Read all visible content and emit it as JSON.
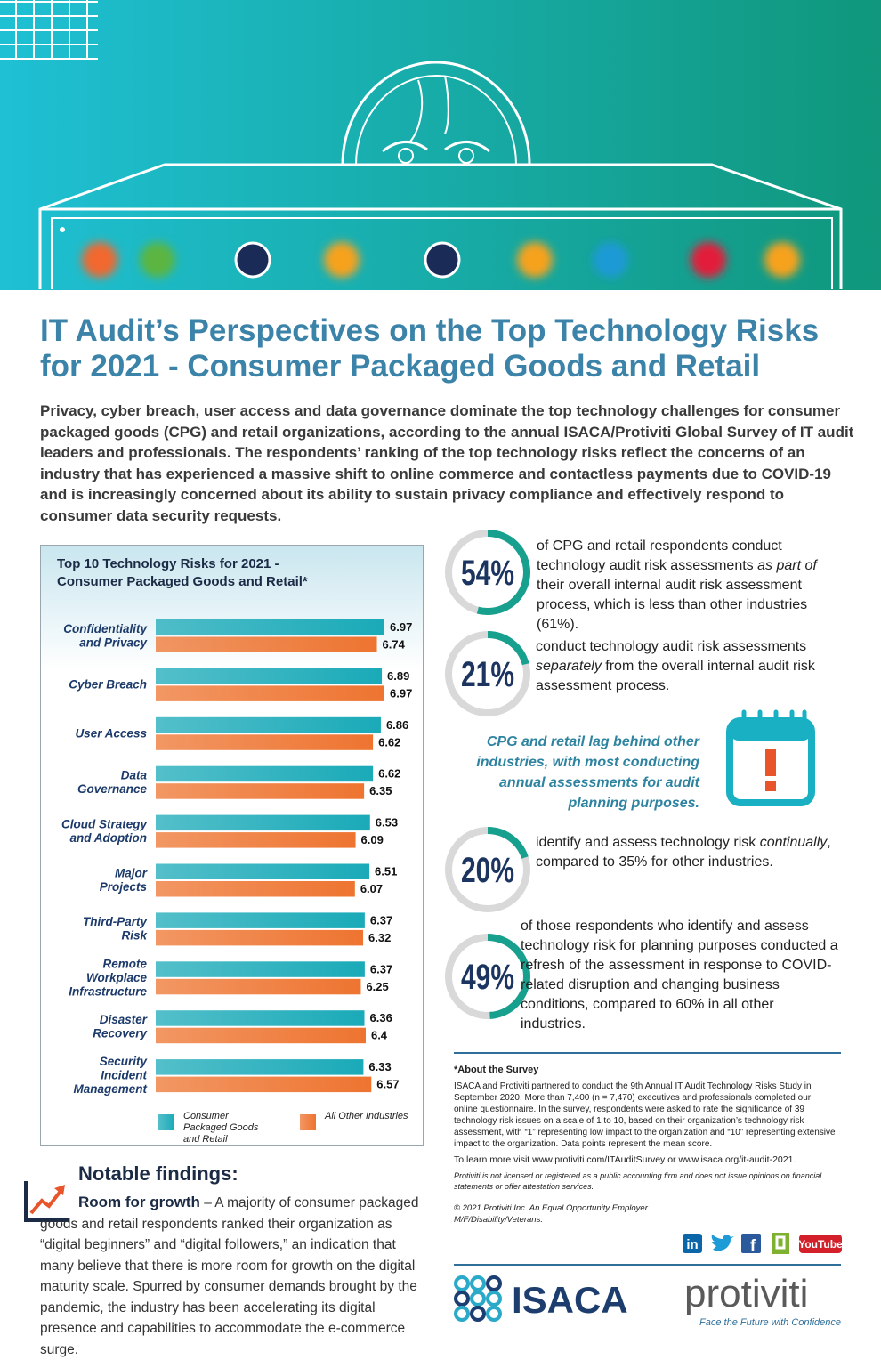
{
  "header": {
    "title": "IT Audit’s Perspectives on the Top Technology Risks for 2021 - Consumer Packaged Goods and Retail"
  },
  "intro": "Privacy, cyber breach, user access and data governance dominate the top technology challenges for consumer packaged goods (CPG) and retail organizations, according to the annual ISACA/Protiviti Global Survey of IT audit leaders and professionals. The respondents’ ranking of the top technology risks reflect the concerns of an industry that has experienced a massive shift to online commerce and contactless payments due to COVID-19 and is increasingly concerned about its ability to sustain privacy compliance and effectively respond to consumer data security requests.",
  "chart_data": {
    "type": "bar",
    "orientation": "horizontal",
    "title": "Top 10 Technology Risks for 2021 - Consumer Packaged Goods and Retail*",
    "categories": [
      [
        "Confidentiality",
        "and Privacy"
      ],
      [
        "Cyber Breach"
      ],
      [
        "User Access"
      ],
      [
        "Data",
        "Governance"
      ],
      [
        "Cloud Strategy",
        "and Adoption"
      ],
      [
        "Major",
        "Projects"
      ],
      [
        "Third-Party",
        "Risk"
      ],
      [
        "Remote",
        "Workplace",
        "Infrastructure"
      ],
      [
        "Disaster",
        "Recovery"
      ],
      [
        "Security",
        "Incident",
        "Management"
      ]
    ],
    "series": [
      {
        "name": "Consumer Packaged Goods and Retail",
        "color": "#1aaab8",
        "values": [
          6.97,
          6.89,
          6.86,
          6.62,
          6.53,
          6.51,
          6.37,
          6.37,
          6.36,
          6.33
        ]
      },
      {
        "name": "All Other Industries",
        "color": "#ee7430",
        "values": [
          6.74,
          6.97,
          6.62,
          6.35,
          6.09,
          6.07,
          6.32,
          6.25,
          6.4,
          6.57
        ]
      }
    ]
  },
  "stats": [
    {
      "value": 54,
      "label": "54%",
      "parts": [
        "of CPG and retail respondents conduct technology audit risk assessments ",
        "as part of",
        " their overall internal audit risk assessment process, which is less than other industries (61%)."
      ]
    },
    {
      "value": 21,
      "label": "21%",
      "parts": [
        "conduct technology audit risk assessments ",
        "separately",
        " from the overall internal audit risk assessment process."
      ]
    },
    {
      "value": 20,
      "label": "20%",
      "parts": [
        "identify and assess technology risk ",
        "continually",
        ", compared to 35% for other industries."
      ]
    },
    {
      "value": 49,
      "label": "49%",
      "parts": [
        "of those respondents who identify and assess technology risk for planning purposes conducted a refresh of the assessment in response to COVID-related disruption and changing business conditions, compared to 60% in all other industries."
      ]
    }
  ],
  "callout": "CPG and retail lag behind other industries, with most conducting annual assessments for audit planning purposes.",
  "findings": {
    "heading": "Notable findings:",
    "items": [
      {
        "title": "Room for growth",
        "text": " – A majority of consumer packaged goods and retail respondents ranked their organization as “digital beginners” and “digital followers,” an indication that many believe that there is more room for growth on the digital maturity scale. Spurred by consumer demands brought by the pandemic, the industry has been accelerating its digital presence and capabilities to accommodate the e-commerce surge."
      }
    ]
  },
  "about": {
    "heading": "*About the Survey",
    "body": "ISACA and Protiviti partnered to conduct the 9th Annual IT Audit Technology Risks Study in September 2020. More than 7,400 (n = 7,470) executives and professionals completed our online questionnaire. In the survey, respondents were asked to rate the significance of 39 technology risk issues on a scale of 1 to 10, based on their organization’s technology risk assessment, with “1” representing low impact to the organization and “10” representing extensive impact to the organization. Data points represent the mean score.",
    "more": "To learn more visit www.protiviti.com/ITAuditSurvey or www.isaca.org/it-audit-2021.",
    "disclaimer": "Protiviti is not licensed or registered as a public accounting firm and does not issue opinions on financial statements or offer attestation services.",
    "copyright": "© 2021 Protiviti Inc. An Equal Opportunity Employer M/F/Disability/Veterans."
  },
  "social": {
    "linkedin": "in",
    "facebook": "f",
    "youtube": "YouTube"
  },
  "logos": {
    "isaca": "ISACA",
    "protiviti": "protiviti",
    "tagline": "Face the Future with Confidence"
  }
}
